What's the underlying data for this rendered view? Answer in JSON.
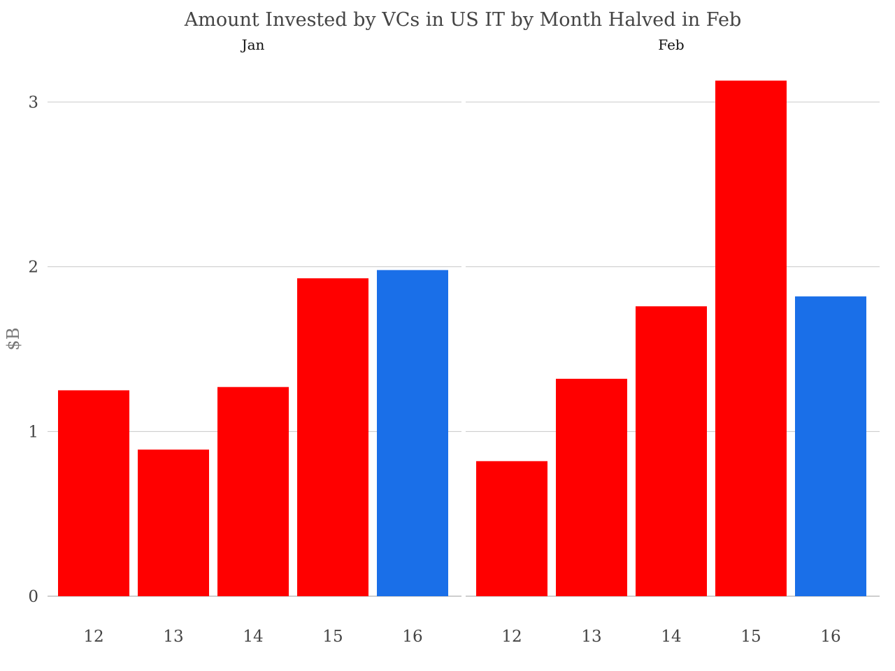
{
  "chart_data": {
    "type": "bar",
    "title": "Amount Invested by VCs in US IT by Month Halved in Feb",
    "ylabel": "$B",
    "xlabel": "",
    "ylim": [
      0,
      3.3
    ],
    "yticks": [
      0,
      1,
      2,
      3
    ],
    "grid": true,
    "legend": "none",
    "panels": [
      {
        "name": "Jan",
        "categories": [
          "12",
          "13",
          "14",
          "15",
          "16"
        ],
        "values": [
          1.25,
          0.89,
          1.27,
          1.93,
          1.98
        ],
        "colors": [
          "#ff0000",
          "#ff0000",
          "#ff0000",
          "#ff0000",
          "#1a6fe8"
        ]
      },
      {
        "name": "Feb",
        "categories": [
          "12",
          "13",
          "14",
          "15",
          "16"
        ],
        "values": [
          0.82,
          1.32,
          1.76,
          3.13,
          1.82
        ],
        "colors": [
          "#ff0000",
          "#ff0000",
          "#ff0000",
          "#ff0000",
          "#1a6fe8"
        ]
      }
    ]
  }
}
